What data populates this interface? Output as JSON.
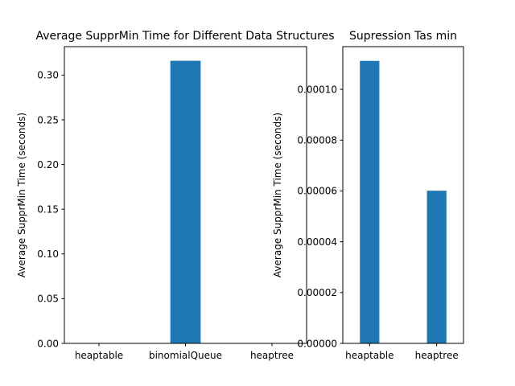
{
  "chart_data": [
    {
      "type": "bar",
      "title": "Average SupprMin Time for Different Data Structures",
      "xlabel": "",
      "ylabel": "Average SupprMin Time (seconds)",
      "categories": [
        "heaptable",
        "binomialQueue",
        "heaptree"
      ],
      "values": [
        0,
        0.316,
        0
      ],
      "ylim": [
        0,
        0.3318
      ],
      "yticks": [
        0.0,
        0.05,
        0.1,
        0.15,
        0.2,
        0.25,
        0.3
      ],
      "ytick_labels": [
        "0.00",
        "0.05",
        "0.10",
        "0.15",
        "0.20",
        "0.25",
        "0.30"
      ],
      "grid": false,
      "legend": "none",
      "color": "#1f77b4"
    },
    {
      "type": "bar",
      "title": "Supression Tas min",
      "xlabel": "",
      "ylabel": "Average SupprMin Time (seconds)",
      "categories": [
        "heaptable",
        "heaptree"
      ],
      "values": [
        0.0001112,
        6.01e-05
      ],
      "ylim": [
        0,
        0.0001168
      ],
      "yticks": [
        0.0,
        2e-05,
        4e-05,
        6e-05,
        8e-05,
        0.0001
      ],
      "ytick_labels": [
        "0.00000",
        "0.00002",
        "0.00004",
        "0.00006",
        "0.00008",
        "0.00010"
      ],
      "grid": false,
      "legend": "none",
      "color": "#1f77b4"
    }
  ]
}
